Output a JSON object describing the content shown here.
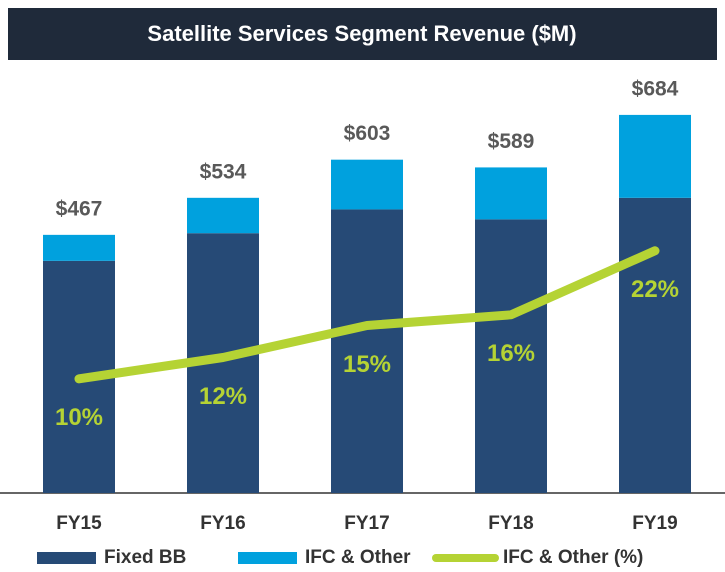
{
  "chart_data": {
    "type": "bar",
    "title": "Satellite Services Segment Revenue ($M)",
    "categories": [
      "FY15",
      "FY16",
      "FY17",
      "FY18",
      "FY19"
    ],
    "stacked": true,
    "ylim": [
      0,
      720
    ],
    "y2lim": [
      -0.7,
      36.6
    ],
    "series": [
      {
        "name": "Fixed BB",
        "color": "#264a76",
        "values": [
          420,
          470,
          513,
          495,
          534
        ]
      },
      {
        "name": "IFC & Other",
        "color": "#00a1de",
        "values": [
          47,
          64,
          90,
          94,
          150
        ]
      },
      {
        "name": "IFC & Other (%)",
        "type": "line",
        "axis": "y2",
        "color": "#b5d334",
        "values": [
          10,
          12,
          15,
          16,
          22
        ],
        "value_labels": [
          "10%",
          "12%",
          "15%",
          "16%",
          "22%"
        ]
      }
    ],
    "total_labels": [
      "$467",
      "$534",
      "$603",
      "$589",
      "$684"
    ]
  }
}
